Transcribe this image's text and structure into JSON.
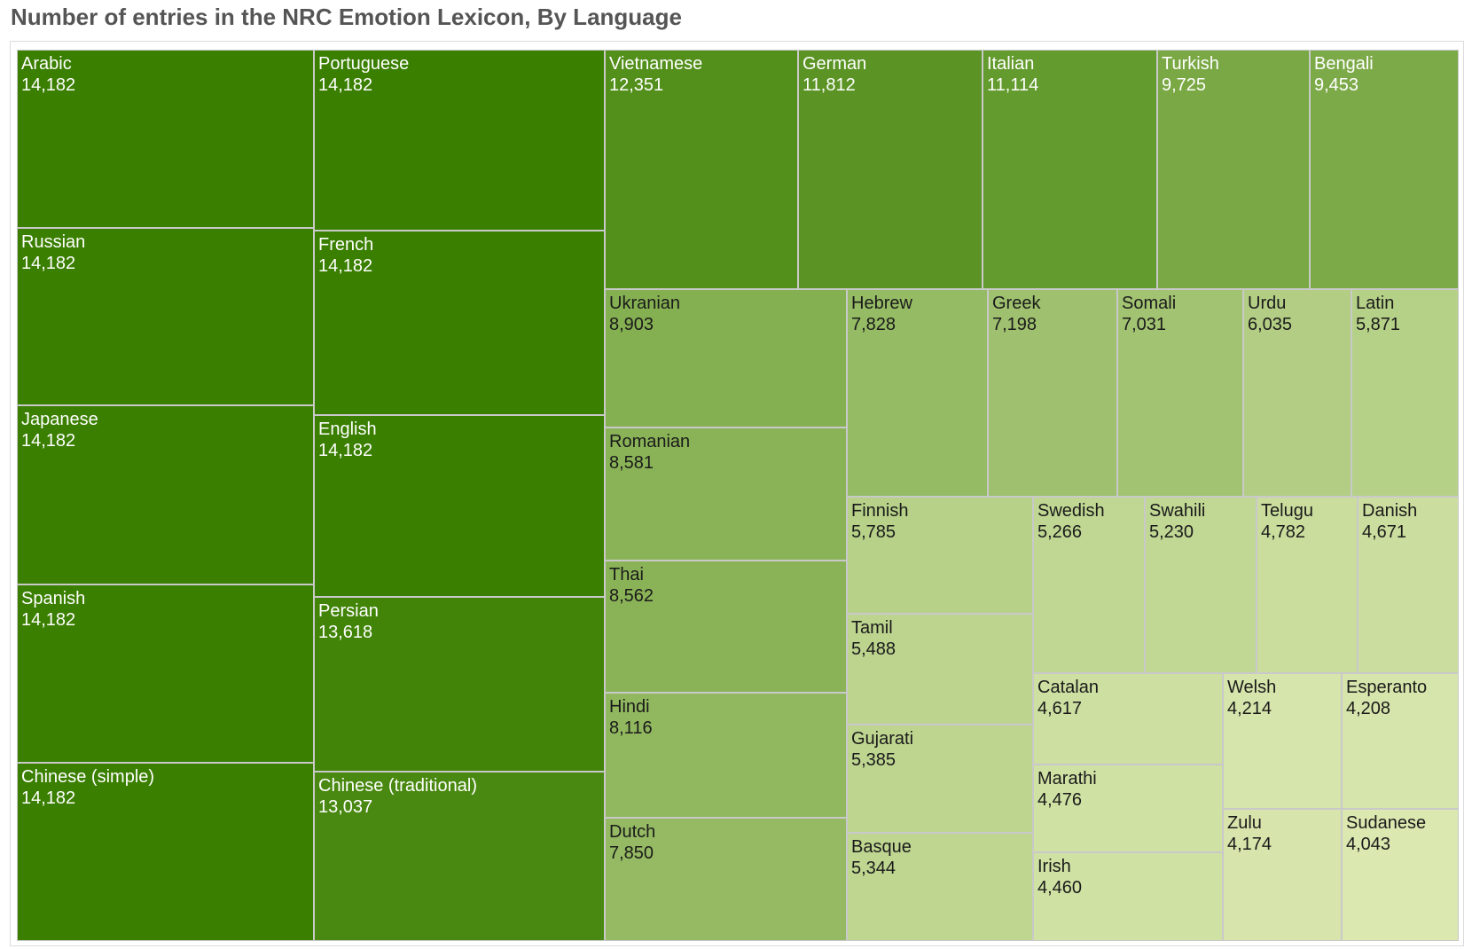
{
  "title": "Number of entries in the NRC Emotion Lexicon, By Language",
  "chart_data": {
    "type": "treemap",
    "title": "Number of entries in the NRC Emotion Lexicon, By Language",
    "color_scale": {
      "low": "#dbe8b0",
      "high": "#3a7f00"
    },
    "items": [
      {
        "name": "Arabic",
        "value": 14182,
        "label": "14,182"
      },
      {
        "name": "Russian",
        "value": 14182,
        "label": "14,182"
      },
      {
        "name": "Japanese",
        "value": 14182,
        "label": "14,182"
      },
      {
        "name": "Spanish",
        "value": 14182,
        "label": "14,182"
      },
      {
        "name": "Chinese (simple)",
        "value": 14182,
        "label": "14,182"
      },
      {
        "name": "Portuguese",
        "value": 14182,
        "label": "14,182"
      },
      {
        "name": "French",
        "value": 14182,
        "label": "14,182"
      },
      {
        "name": "English",
        "value": 14182,
        "label": "14,182"
      },
      {
        "name": "Persian",
        "value": 13618,
        "label": "13,618"
      },
      {
        "name": "Chinese (traditional)",
        "value": 13037,
        "label": "13,037"
      },
      {
        "name": "Vietnamese",
        "value": 12351,
        "label": "12,351"
      },
      {
        "name": "German",
        "value": 11812,
        "label": "11,812"
      },
      {
        "name": "Italian",
        "value": 11114,
        "label": "11,114"
      },
      {
        "name": "Turkish",
        "value": 9725,
        "label": "9,725"
      },
      {
        "name": "Bengali",
        "value": 9453,
        "label": "9,453"
      },
      {
        "name": "Ukranian",
        "value": 8903,
        "label": "8,903"
      },
      {
        "name": "Romanian",
        "value": 8581,
        "label": "8,581"
      },
      {
        "name": "Thai",
        "value": 8562,
        "label": "8,562"
      },
      {
        "name": "Hindi",
        "value": 8116,
        "label": "8,116"
      },
      {
        "name": "Dutch",
        "value": 7850,
        "label": "7,850"
      },
      {
        "name": "Hebrew",
        "value": 7828,
        "label": "7,828"
      },
      {
        "name": "Greek",
        "value": 7198,
        "label": "7,198"
      },
      {
        "name": "Somali",
        "value": 7031,
        "label": "7,031"
      },
      {
        "name": "Urdu",
        "value": 6035,
        "label": "6,035"
      },
      {
        "name": "Latin",
        "value": 5871,
        "label": "5,871"
      },
      {
        "name": "Finnish",
        "value": 5785,
        "label": "5,785"
      },
      {
        "name": "Tamil",
        "value": 5488,
        "label": "5,488"
      },
      {
        "name": "Gujarati",
        "value": 5385,
        "label": "5,385"
      },
      {
        "name": "Basque",
        "value": 5344,
        "label": "5,344"
      },
      {
        "name": "Swedish",
        "value": 5266,
        "label": "5,266"
      },
      {
        "name": "Swahili",
        "value": 5230,
        "label": "5,230"
      },
      {
        "name": "Telugu",
        "value": 4782,
        "label": "4,782"
      },
      {
        "name": "Danish",
        "value": 4671,
        "label": "4,671"
      },
      {
        "name": "Catalan",
        "value": 4617,
        "label": "4,617"
      },
      {
        "name": "Marathi",
        "value": 4476,
        "label": "4,476"
      },
      {
        "name": "Irish",
        "value": 4460,
        "label": "4,460"
      },
      {
        "name": "Welsh",
        "value": 4214,
        "label": "4,214"
      },
      {
        "name": "Zulu",
        "value": 4174,
        "label": "4,174"
      },
      {
        "name": "Esperanto",
        "value": 4208,
        "label": "4,208"
      },
      {
        "name": "Sudanese",
        "value": 4043,
        "label": "4,043"
      }
    ]
  }
}
